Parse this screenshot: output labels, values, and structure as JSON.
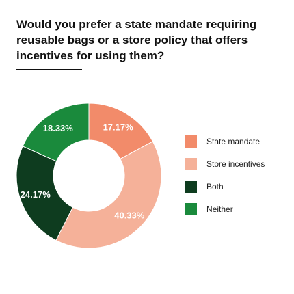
{
  "chart_data": {
    "type": "pie",
    "title": "Would you prefer a state mandate requiring reusable bags or a store policy that offers incentives for using them?",
    "categories": [
      "State mandate",
      "Store incentives",
      "Both",
      "Neither"
    ],
    "values": [
      17.17,
      40.33,
      24.17,
      18.33
    ],
    "value_labels": [
      "17.17%",
      "40.33%",
      "24.17%",
      "18.33%"
    ],
    "colors": [
      "#f28b6a",
      "#f5b199",
      "#0e3c1f",
      "#1a8a3c"
    ],
    "donut": true,
    "start_angle_deg": 0,
    "direction": "clockwise",
    "legend_position": "right"
  }
}
